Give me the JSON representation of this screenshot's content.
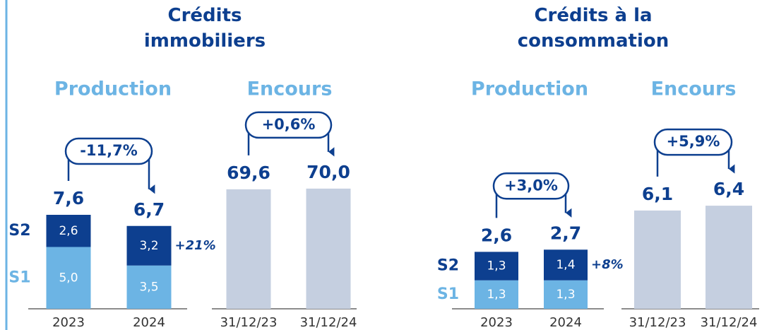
{
  "headings": [
    "Crédits immobiliers",
    "Crédits à la consommation"
  ],
  "chart_data": [
    {
      "type": "stacked_bar",
      "title": "Production",
      "categories": [
        "2023",
        "2024"
      ],
      "series": [
        {
          "name": "S1",
          "color": "#6cb4e4",
          "values": [
            5.0,
            3.5
          ],
          "value_labels": [
            "5,0",
            "3,5"
          ]
        },
        {
          "name": "S2",
          "color": "#0d3f8f",
          "values": [
            2.6,
            3.2
          ],
          "value_labels": [
            "2,6",
            "3,2"
          ]
        }
      ],
      "totals": [
        7.6,
        6.7
      ],
      "total_labels": [
        "7,6",
        "6,7"
      ],
      "change": "-11,7%",
      "last_segment_change": "+21%"
    },
    {
      "type": "bar",
      "title": "Encours",
      "categories": [
        "31/12/23",
        "31/12/24"
      ],
      "color": "#c5cfe0",
      "values": [
        69.6,
        70.0
      ],
      "value_labels": [
        "69,6",
        "70,0"
      ],
      "change": "+0,6%"
    },
    {
      "type": "stacked_bar",
      "title": "Production",
      "categories": [
        "2023",
        "2024"
      ],
      "series": [
        {
          "name": "S1",
          "color": "#6cb4e4",
          "values": [
            1.3,
            1.3
          ],
          "value_labels": [
            "1,3",
            "1,3"
          ]
        },
        {
          "name": "S2",
          "color": "#0d3f8f",
          "values": [
            1.3,
            1.4
          ],
          "value_labels": [
            "1,3",
            "1,4"
          ]
        }
      ],
      "totals": [
        2.6,
        2.7
      ],
      "total_labels": [
        "2,6",
        "2,7"
      ],
      "change": "+3,0%",
      "last_segment_change": "+8%"
    },
    {
      "type": "bar",
      "title": "Encours",
      "categories": [
        "31/12/23",
        "31/12/24"
      ],
      "color": "#c5cfe0",
      "values": [
        6.1,
        6.4
      ],
      "value_labels": [
        "6,1",
        "6,4"
      ],
      "change": "+5,9%"
    }
  ]
}
